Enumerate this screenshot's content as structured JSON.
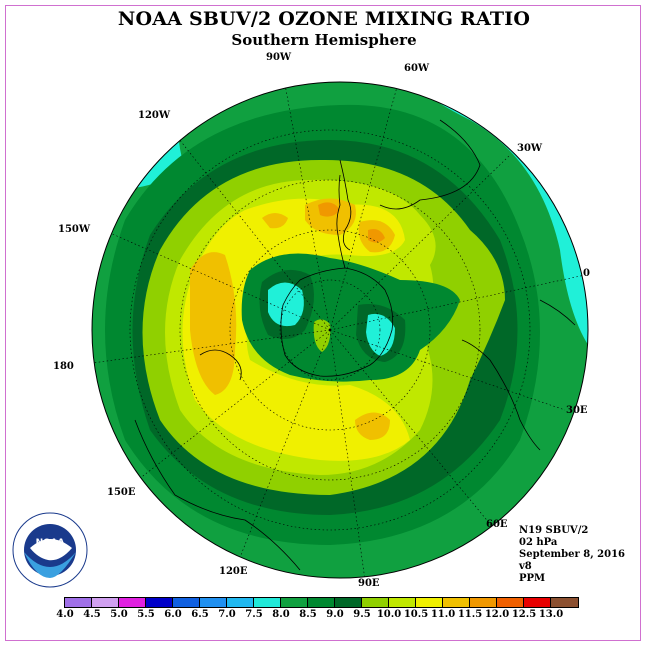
{
  "title": "NOAA SBUV/2 OZONE MIXING RATIO",
  "subtitle": "Southern Hemisphere",
  "longitude_labels": {
    "lon_90w": "90W",
    "lon_60w": "60W",
    "lon_120w": "120W",
    "lon_30w": "30W",
    "lon_150w": "150W",
    "lon_0": "0",
    "lon_180": "180",
    "lon_30e": "30E",
    "lon_150e": "150E",
    "lon_60e": "60E",
    "lon_120e": "120E",
    "lon_90e": "90E"
  },
  "info": {
    "satellite": "N19 SBUV/2",
    "level": "02 hPa",
    "date": "September 8, 2016",
    "version": "v8",
    "units": "PPM"
  },
  "logo": {
    "text": "NOAA",
    "ring_text": "NATIONAL OCEANIC AND ATMOSPHERIC ADMINISTRATION • U.S. DEPARTMENT OF COMMERCE"
  },
  "colorbar": {
    "labels": [
      "4.0",
      "4.5",
      "5.0",
      "5.5",
      "6.0",
      "6.5",
      "7.0",
      "7.5",
      "8.0",
      "8.5",
      "9.0",
      "9.5",
      "10.0",
      "10.5",
      "11.0",
      "11.5",
      "12.0",
      "12.5",
      "13.0"
    ],
    "colors": [
      "#a070e8",
      "#d0a0f0",
      "#e020e0",
      "#0000c8",
      "#1060e0",
      "#2090f0",
      "#20b8f0",
      "#20e8d8",
      "#10a040",
      "#008830",
      "#006828",
      "#90d000",
      "#c0e800",
      "#f0f000",
      "#f0c000",
      "#f09800",
      "#f06000",
      "#e80000",
      "#8c5030"
    ]
  },
  "map_colors": {
    "ring_8_8_5": "#10a040",
    "ring_8_5_9": "#008830",
    "ring_9_9_5": "#006828",
    "ring_9_5_10": "#90d000",
    "ring_10_10_5": "#c0e800",
    "ring_10_5_11": "#f0f000",
    "ring_11_11_5": "#f0c000",
    "ring_11_5_12": "#f09800",
    "low_7_5_8": "#20f0d8"
  }
}
